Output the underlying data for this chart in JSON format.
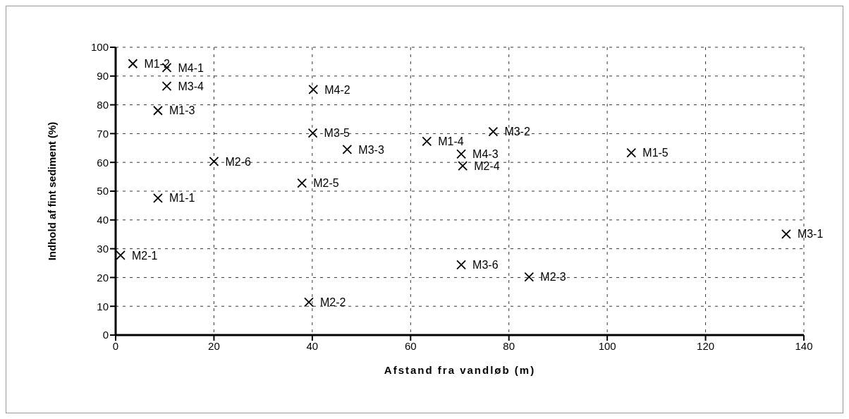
{
  "chart_data": {
    "type": "scatter",
    "xlabel": "Afstand fra vandløb (m)",
    "ylabel": "Indhold af fint sediment (%)",
    "x": [
      3.5,
      10.4,
      10.4,
      8.6,
      40.2,
      40.1,
      47.1,
      20.0,
      37.9,
      8.6,
      1.0,
      39.3,
      63.3,
      76.8,
      70.3,
      70.6,
      70.3,
      84.1,
      104.9,
      136.4
    ],
    "series": [
      {
        "color": "#000000",
        "values": [
          94.3,
          92.9,
          86.5,
          78,
          85.3,
          70.2,
          64.5,
          60.3,
          52.8,
          47.6,
          27.7,
          11.4,
          67.3,
          70.7,
          62.9,
          58.8,
          24.4,
          20.2,
          63.3,
          35.1
        ]
      }
    ],
    "annotations": [
      {
        "text": "M1-2",
        "x": 3.5,
        "y": 94.3
      },
      {
        "text": "M4-1",
        "x": 10.4,
        "y": 92.9
      },
      {
        "text": "M3-4",
        "x": 10.4,
        "y": 86.5
      },
      {
        "text": "M1-3",
        "x": 8.6,
        "y": 78
      },
      {
        "text": "M4-2",
        "x": 40.2,
        "y": 85.3
      },
      {
        "text": "M3-5",
        "x": 40.1,
        "y": 70.2
      },
      {
        "text": "M3-3",
        "x": 47.1,
        "y": 64.5
      },
      {
        "text": "M2-6",
        "x": 20.0,
        "y": 60.3
      },
      {
        "text": "M2-5",
        "x": 37.9,
        "y": 52.8
      },
      {
        "text": "M1-1",
        "x": 8.6,
        "y": 47.6
      },
      {
        "text": "M2-1",
        "x": 1.0,
        "y": 27.7
      },
      {
        "text": "M2-2",
        "x": 39.3,
        "y": 11.4
      },
      {
        "text": "M1-4",
        "x": 63.3,
        "y": 67.3
      },
      {
        "text": "M3-2",
        "x": 76.8,
        "y": 70.7
      },
      {
        "text": "M4-3",
        "x": 70.3,
        "y": 62.9
      },
      {
        "text": "M2-4",
        "x": 70.6,
        "y": 58.8
      },
      {
        "text": "M3-6",
        "x": 70.3,
        "y": 24.4
      },
      {
        "text": "M2-3",
        "x": 84.1,
        "y": 20.2
      },
      {
        "text": "M1-5",
        "x": 104.9,
        "y": 63.3
      },
      {
        "text": "M3-1",
        "x": 136.4,
        "y": 35.1
      }
    ],
    "xlim": [
      0,
      140
    ],
    "xticks": [
      0,
      20,
      40,
      60,
      80,
      100,
      120,
      140
    ],
    "ylim": [
      0,
      100
    ],
    "yticks": [
      0,
      10,
      20,
      30,
      40,
      50,
      60,
      70,
      80,
      90,
      100
    ],
    "grid": true,
    "legend": false,
    "marker": "cross"
  }
}
